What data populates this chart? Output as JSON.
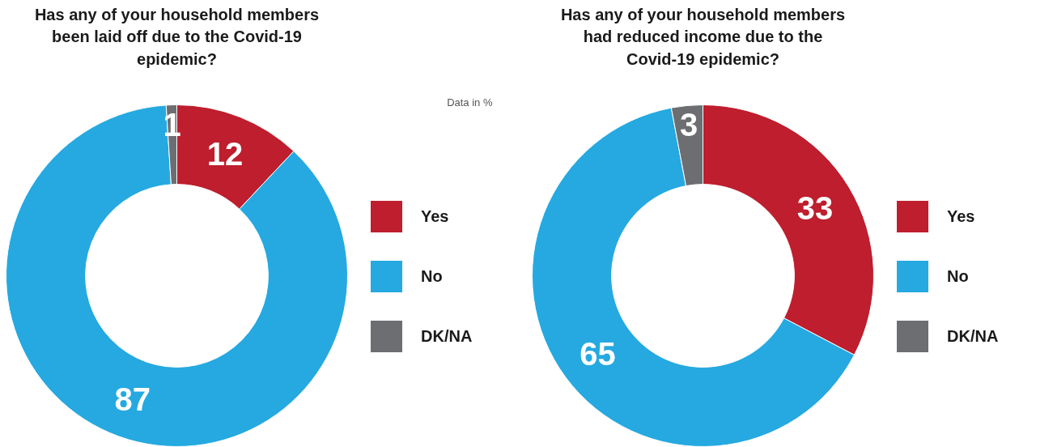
{
  "chart_data": [
    {
      "type": "donut",
      "title": "Has any of your household members been laid off due to the Covid-19 epidemic?",
      "categories": [
        "Yes",
        "No",
        "DK/NA"
      ],
      "values": [
        12,
        87,
        1
      ],
      "colors": [
        "#be1e2d",
        "#25a9e0",
        "#6d6e71"
      ],
      "data_labels": true,
      "legend": "right",
      "annotations": [
        "Data in %"
      ]
    },
    {
      "type": "donut",
      "title": "Has any of your household members had reduced income due to the Covid-19 epidemic?",
      "categories": [
        "Yes",
        "No",
        "DK/NA"
      ],
      "values": [
        33,
        65,
        3
      ],
      "colors": [
        "#be1e2d",
        "#25a9e0",
        "#6d6e71"
      ],
      "data_labels": true,
      "legend": "right"
    }
  ]
}
